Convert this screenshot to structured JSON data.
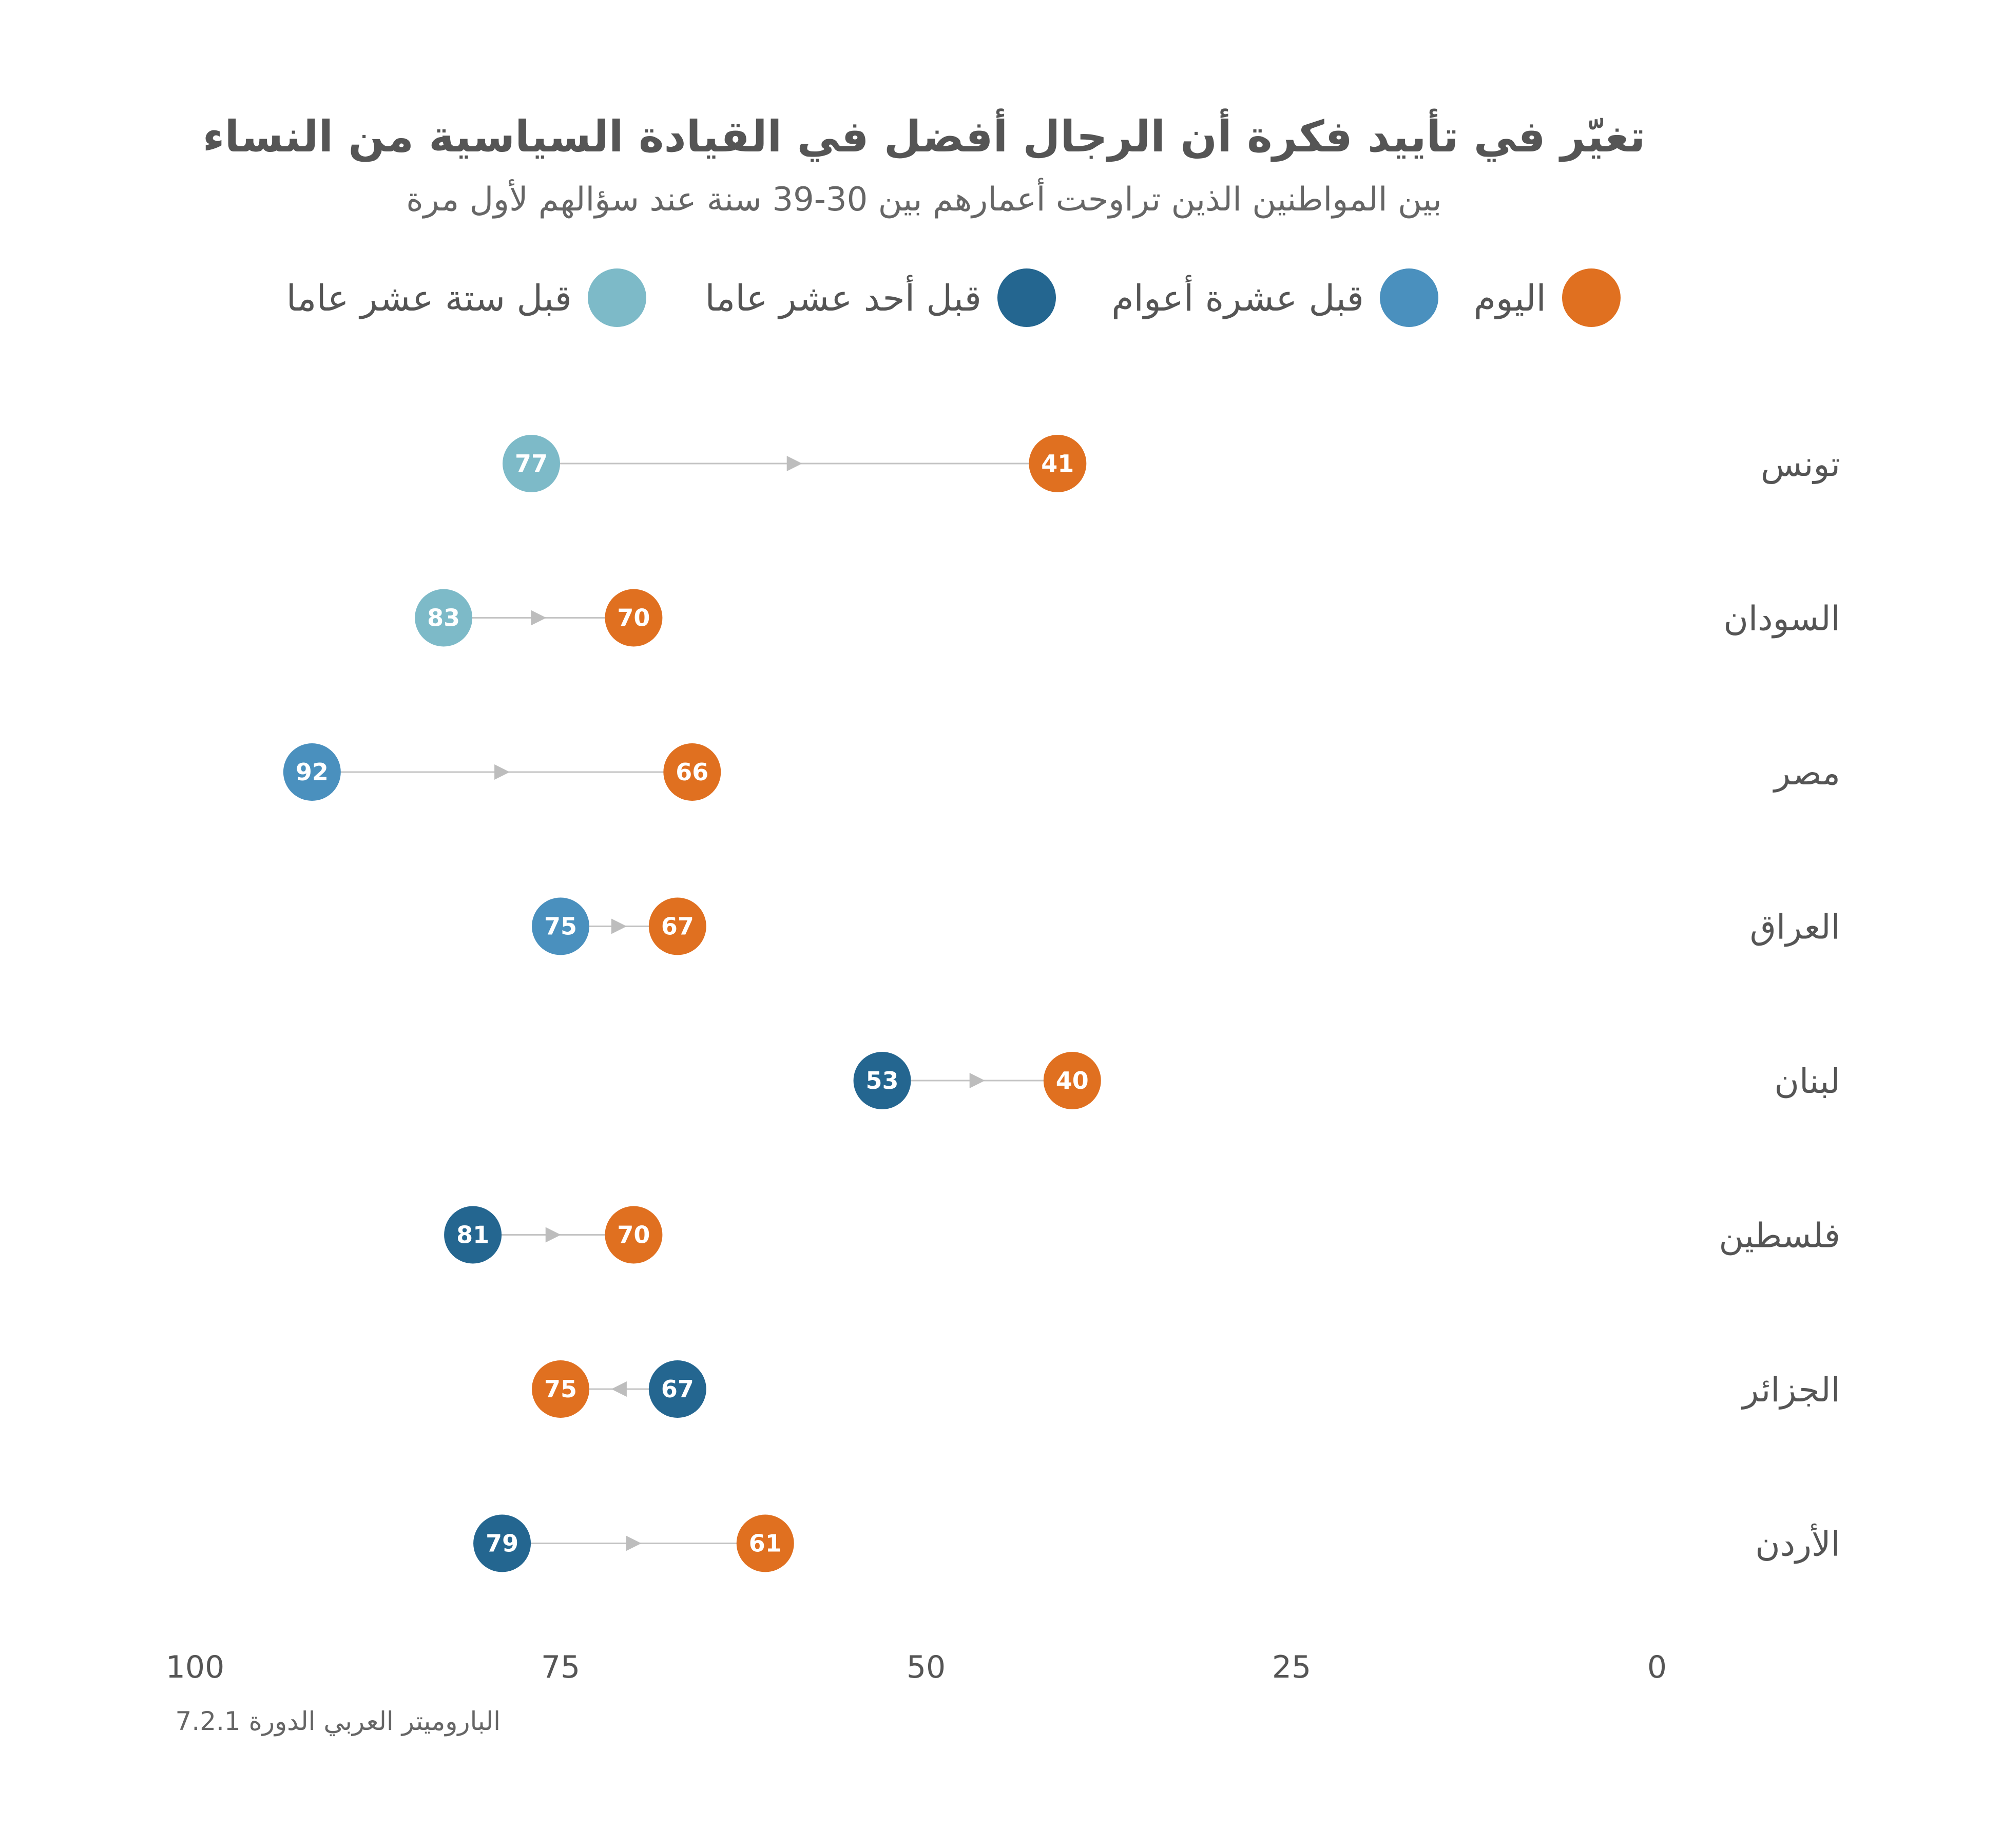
{
  "chart_data": {
    "type": "scatter",
    "title": "تغيّر في تأييد فكرة أن الرجال أفضل في القيادة السياسية من النساء",
    "subtitle": "بين المواطنين الذين تراوحت أعمارهم بين 30-39 سنة عند سؤالهم لأول مرة",
    "source": "الباروميتر العربي الدورة 7.2.1",
    "xlim": [
      0,
      100
    ],
    "x_reversed": true,
    "ticks": [
      100,
      75,
      50,
      25,
      0
    ],
    "tick_labels": [
      "100",
      "75",
      "50",
      "25",
      "0"
    ],
    "grid": false,
    "legend_position": "top",
    "legend": [
      {
        "key": "today",
        "label": "اليوم",
        "color": "#E07020"
      },
      {
        "key": "ten",
        "label": "قبل عشرة أعوام",
        "color": "#4A90BE"
      },
      {
        "key": "eleven",
        "label": "قبل أحد عشر عاما",
        "color": "#246690"
      },
      {
        "key": "sixteen",
        "label": "قبل ستة عشر عاما",
        "color": "#7DBAC8"
      }
    ],
    "rows": [
      {
        "country": "تونس",
        "today": 41,
        "earlier": 77,
        "earlier_color": "#7DBAC8"
      },
      {
        "country": "السودان",
        "today": 70,
        "earlier": 83,
        "earlier_color": "#7DBAC8"
      },
      {
        "country": "مصر",
        "today": 66,
        "earlier": 92,
        "earlier_color": "#4A90BE"
      },
      {
        "country": "العراق",
        "today": 67,
        "earlier": 75,
        "earlier_color": "#4A90BE"
      },
      {
        "country": "لبنان",
        "today": 40,
        "earlier": 53,
        "earlier_color": "#246690"
      },
      {
        "country": "فلسطين",
        "today": 70,
        "earlier": 81,
        "earlier_color": "#246690"
      },
      {
        "country": "الجزائر",
        "today": 75,
        "earlier": 67,
        "earlier_color": "#246690"
      },
      {
        "country": "الأردن",
        "today": 61,
        "earlier": 79,
        "earlier_color": "#246690"
      }
    ]
  }
}
